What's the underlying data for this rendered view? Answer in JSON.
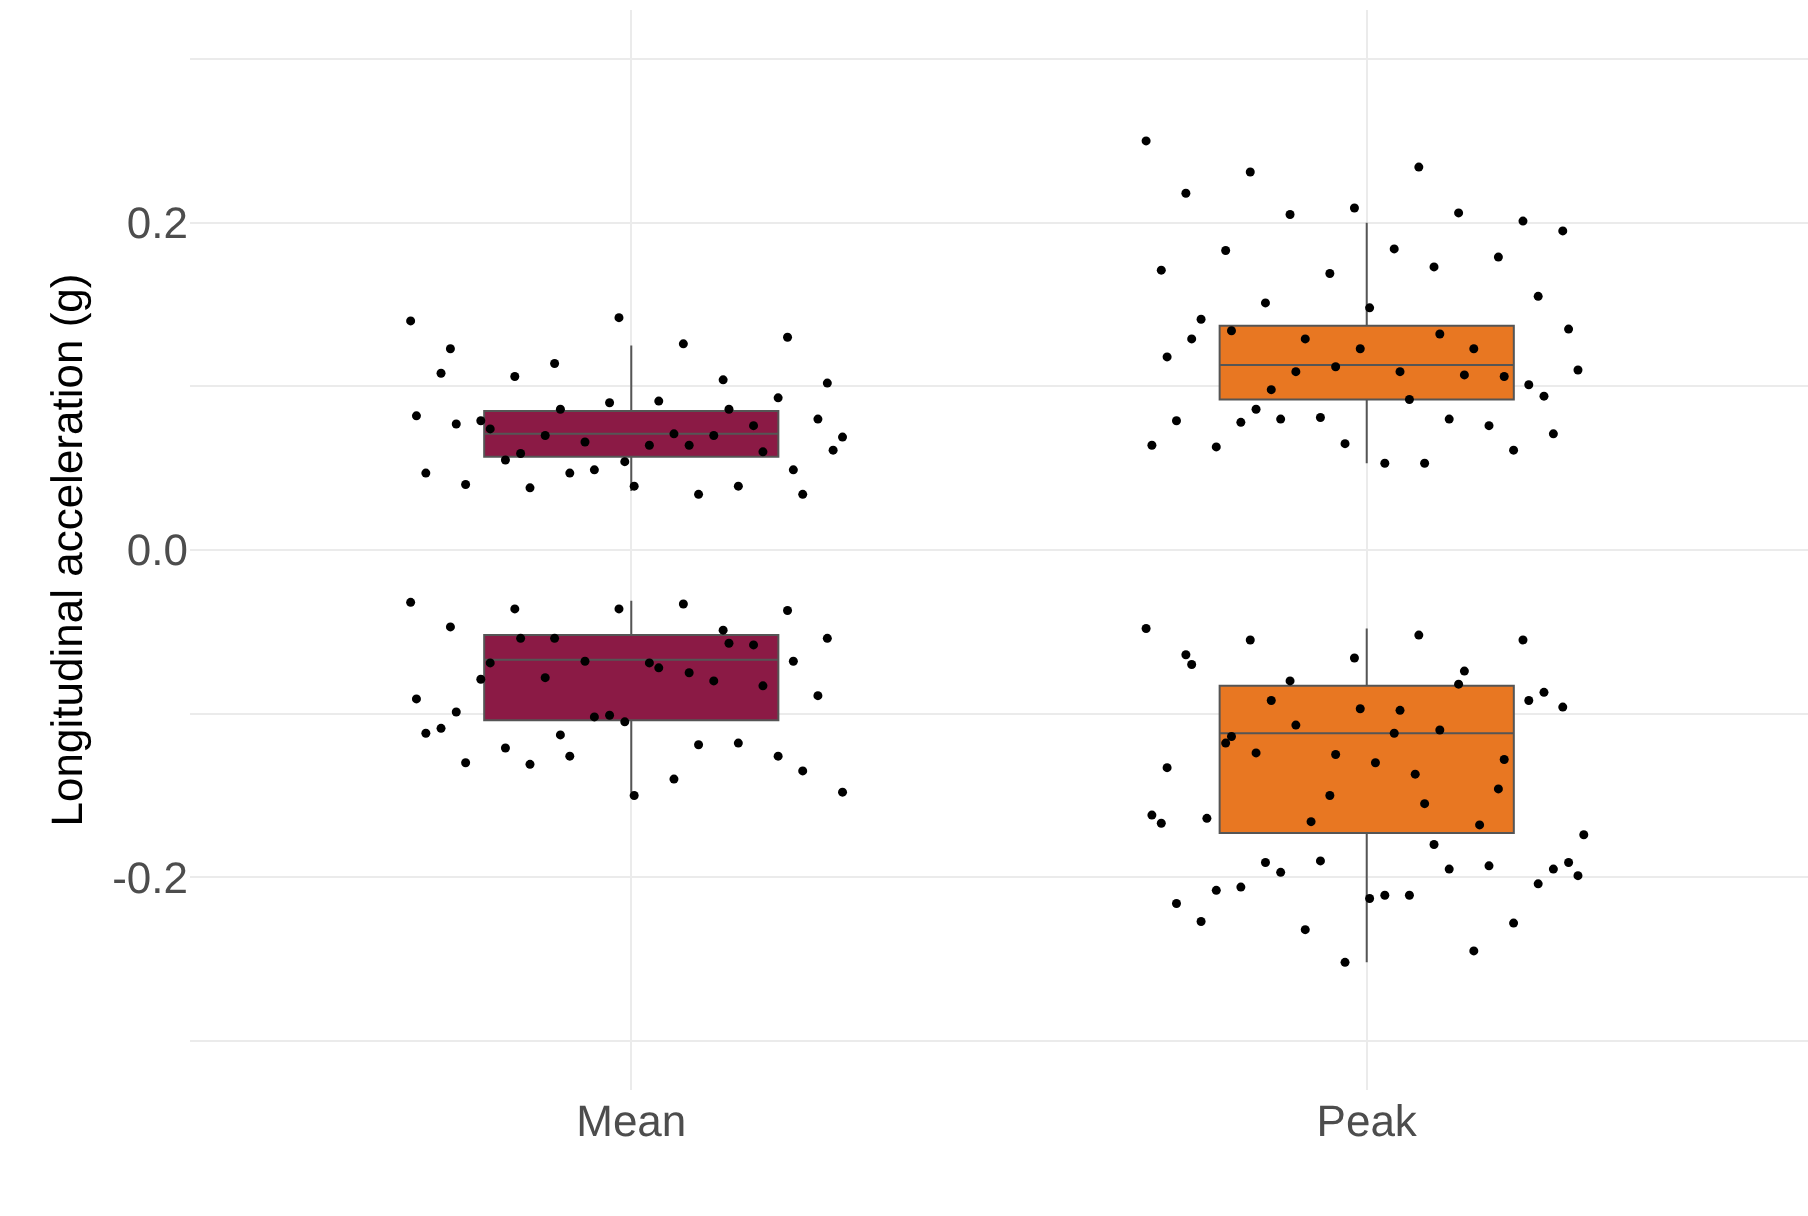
{
  "chart_data": {
    "type": "box",
    "ylabel": "Longitudinal acceleration (g)",
    "categories": [
      "Mean",
      "Peak"
    ],
    "ylim": [
      -0.33,
      0.33
    ],
    "yticks": [
      {
        "value": -0.3,
        "label": null
      },
      {
        "value": -0.2,
        "label": "-0.2"
      },
      {
        "value": -0.1,
        "label": null
      },
      {
        "value": 0,
        "label": "0.0"
      },
      {
        "value": 0.1,
        "label": null
      },
      {
        "value": 0.2,
        "label": "0.2"
      },
      {
        "value": 0.3,
        "label": null
      }
    ],
    "grid": true,
    "marker": "circle",
    "series": [
      {
        "colors": [
          "#8b1a45",
          "#e87722"
        ],
        "boxes": [
          {
            "low": 0.036,
            "q1": 0.057,
            "median": 0.071,
            "q3": 0.085,
            "high": 0.125
          },
          {
            "low": 0.053,
            "q1": 0.092,
            "median": 0.113,
            "q3": 0.137,
            "high": 0.2
          }
        ]
      },
      {
        "colors": [
          "#8b1a45",
          "#e87722"
        ],
        "boxes": [
          {
            "low": -0.148,
            "q1": -0.104,
            "median": -0.067,
            "q3": -0.052,
            "high": -0.031
          },
          {
            "low": -0.252,
            "q1": -0.173,
            "median": -0.112,
            "q3": -0.083,
            "high": -0.048
          }
        ]
      },
      {
        "type": "scatter",
        "color": "#000000",
        "x": [
          "Mean",
          "Mean",
          "Mean",
          "Mean",
          "Mean",
          "Mean",
          "Mean",
          "Mean",
          "Mean",
          "Mean",
          "Mean",
          "Mean",
          "Mean",
          "Mean",
          "Mean",
          "Mean",
          "Mean",
          "Mean",
          "Mean",
          "Mean",
          "Mean",
          "Mean",
          "Mean",
          "Mean",
          "Mean",
          "Mean",
          "Mean",
          "Mean",
          "Mean",
          "Mean",
          "Mean",
          "Mean",
          "Mean",
          "Mean",
          "Mean",
          "Mean",
          "Mean",
          "Mean",
          "Mean",
          "Mean",
          "Mean",
          "Mean",
          "Mean"
        ],
        "values": [
          0.14,
          0.126,
          0.106,
          0.13,
          0.142,
          0.123,
          0.104,
          0.114,
          0.102,
          0.091,
          0.074,
          0.06,
          0.049,
          0.047,
          0.034,
          0.038,
          0.034,
          0.039,
          0.04,
          0.039,
          0.047,
          0.069,
          0.071,
          0.055,
          0.093,
          0.09,
          0.108,
          0.07,
          0.07,
          0.08,
          0.064,
          0.079,
          0.076,
          0.066,
          0.082,
          0.064,
          0.059,
          0.049,
          0.054,
          0.077,
          0.086,
          0.086,
          0.061
        ]
      },
      {
        "type": "scatter",
        "color": "#000000",
        "x": [
          "Mean",
          "Mean",
          "Mean",
          "Mean",
          "Mean",
          "Mean",
          "Mean",
          "Mean",
          "Mean",
          "Mean",
          "Mean",
          "Mean",
          "Mean",
          "Mean",
          "Mean",
          "Mean",
          "Mean",
          "Mean",
          "Mean",
          "Mean",
          "Mean",
          "Mean",
          "Mean",
          "Mean",
          "Mean",
          "Mean",
          "Mean",
          "Mean",
          "Mean",
          "Mean",
          "Mean",
          "Mean",
          "Mean",
          "Mean",
          "Mean",
          "Mean",
          "Mean",
          "Mean",
          "Mean",
          "Mean",
          "Mean",
          "Mean"
        ],
        "values": [
          -0.032,
          -0.033,
          -0.036,
          -0.037,
          -0.036,
          -0.047,
          -0.049,
          -0.054,
          -0.054,
          -0.072,
          -0.069,
          -0.083,
          -0.102,
          -0.112,
          -0.119,
          -0.131,
          -0.135,
          -0.15,
          -0.13,
          -0.118,
          -0.126,
          -0.148,
          -0.14,
          -0.121,
          -0.126,
          -0.101,
          -0.109,
          -0.08,
          -0.078,
          -0.089,
          -0.069,
          -0.079,
          -0.058,
          -0.068,
          -0.091,
          -0.075,
          -0.054,
          -0.068,
          -0.105,
          -0.099,
          -0.057,
          -0.113
        ]
      },
      {
        "type": "scatter",
        "color": "#000000",
        "x": [
          "Peak",
          "Peak",
          "Peak",
          "Peak",
          "Peak",
          "Peak",
          "Peak",
          "Peak",
          "Peak",
          "Peak",
          "Peak",
          "Peak",
          "Peak",
          "Peak",
          "Peak",
          "Peak",
          "Peak",
          "Peak",
          "Peak",
          "Peak",
          "Peak",
          "Peak",
          "Peak",
          "Peak",
          "Peak",
          "Peak",
          "Peak",
          "Peak",
          "Peak",
          "Peak",
          "Peak",
          "Peak",
          "Peak",
          "Peak",
          "Peak",
          "Peak",
          "Peak",
          "Peak",
          "Peak",
          "Peak",
          "Peak",
          "Peak",
          "Peak",
          "Peak",
          "Peak",
          "Peak",
          "Peak",
          "Peak",
          "Peak",
          "Peak",
          "Peak"
        ],
        "values": [
          0.25,
          0.234,
          0.231,
          0.201,
          0.209,
          0.218,
          0.206,
          0.205,
          0.195,
          0.184,
          0.183,
          0.179,
          0.169,
          0.171,
          0.173,
          0.151,
          0.155,
          0.148,
          0.141,
          0.123,
          0.129,
          0.11,
          0.092,
          0.078,
          0.061,
          0.065,
          0.079,
          0.08,
          0.08,
          0.071,
          0.053,
          0.063,
          0.076,
          0.081,
          0.064,
          0.053,
          0.086,
          0.101,
          0.123,
          0.129,
          0.107,
          0.109,
          0.135,
          0.109,
          0.134,
          0.106,
          0.112,
          0.118,
          0.132,
          0.098,
          0.094
        ]
      },
      {
        "type": "scatter",
        "color": "#000000",
        "x": [
          "Peak",
          "Peak",
          "Peak",
          "Peak",
          "Peak",
          "Peak",
          "Peak",
          "Peak",
          "Peak",
          "Peak",
          "Peak",
          "Peak",
          "Peak",
          "Peak",
          "Peak",
          "Peak",
          "Peak",
          "Peak",
          "Peak",
          "Peak",
          "Peak",
          "Peak",
          "Peak",
          "Peak",
          "Peak",
          "Peak",
          "Peak",
          "Peak",
          "Peak",
          "Peak",
          "Peak",
          "Peak",
          "Peak",
          "Peak",
          "Peak",
          "Peak",
          "Peak",
          "Peak",
          "Peak",
          "Peak",
          "Peak",
          "Peak",
          "Peak",
          "Peak",
          "Peak",
          "Peak",
          "Peak",
          "Peak",
          "Peak",
          "Peak",
          "Peak",
          "Peak",
          "Peak",
          "Peak",
          "Peak",
          "Peak",
          "Peak"
        ],
        "values": [
          -0.048,
          -0.052,
          -0.055,
          -0.055,
          -0.066,
          -0.064,
          -0.082,
          -0.08,
          -0.096,
          -0.112,
          -0.118,
          -0.146,
          -0.15,
          -0.167,
          -0.18,
          -0.191,
          -0.204,
          -0.213,
          -0.227,
          -0.245,
          -0.232,
          -0.199,
          -0.211,
          -0.206,
          -0.228,
          -0.252,
          -0.216,
          -0.195,
          -0.197,
          -0.195,
          -0.211,
          -0.208,
          -0.193,
          -0.19,
          -0.162,
          -0.155,
          -0.124,
          -0.092,
          -0.097,
          -0.07,
          -0.074,
          -0.107,
          -0.191,
          -0.098,
          -0.114,
          -0.128,
          -0.125,
          -0.133,
          -0.11,
          -0.092,
          -0.087,
          -0.13,
          -0.164,
          -0.168,
          -0.166,
          -0.174,
          -0.137
        ]
      }
    ]
  }
}
